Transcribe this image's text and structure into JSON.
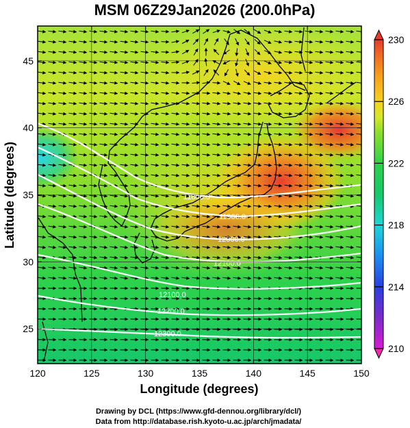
{
  "title": "MSM 06Z29Jan2026 (200.0hPa)",
  "xlabel": "Longitude (degrees)",
  "ylabel": "Latitude  (degrees)",
  "credits": {
    "line1": "Drawing by DCL (https://www.gfd-dennou.org/library/dcl/)",
    "line2": "Data from http://database.rish.kyoto-u.ac.jp/arch/jmadata/"
  },
  "colors": {
    "frame": "#000000",
    "coastline": "#000000",
    "contour": "#ffffff",
    "vector": "#000000"
  },
  "chart_data": {
    "type": "heatmap",
    "x_ticks": [
      120,
      125,
      130,
      135,
      140,
      145,
      150
    ],
    "y_ticks": [
      25,
      30,
      35,
      40,
      45
    ],
    "xlim": [
      120,
      150
    ],
    "ylim": [
      22.4,
      47.6
    ],
    "colorbar": {
      "ticks": [
        230,
        226,
        222,
        218,
        214,
        210
      ],
      "range": [
        210,
        230
      ],
      "colormap": [
        "#d81bd0",
        "#7a2cc9",
        "#2a3fe0",
        "#1a8ff0",
        "#1ed6d6",
        "#17c86a",
        "#2ed24a",
        "#8fde2c",
        "#d6e72a",
        "#f5d21e",
        "#f7a21d",
        "#ef6a25",
        "#e53a2e"
      ]
    },
    "contour_labels": [
      "11800.0",
      "11900.0",
      "12000.0",
      "12100.0",
      "12200.0",
      "12300.0"
    ]
  }
}
